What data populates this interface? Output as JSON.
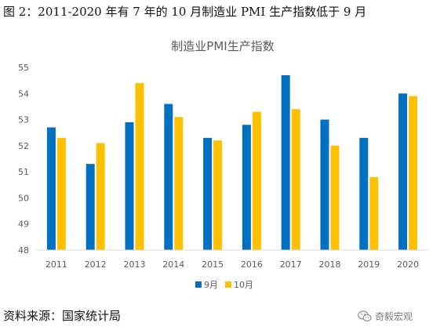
{
  "figure": {
    "caption": "图 2：2011-2020 年有 7 年的 10 月制造业 PMI 生产指数低于 9 月",
    "source": "资料来源：国家统计局",
    "watermark": "奇毅宏观"
  },
  "colors": {
    "series_sep": "#0070C0",
    "series_oct": "#FFC000",
    "axis_line": "#d9d9d9",
    "tick_text": "#595959",
    "title_text": "#595959"
  },
  "chart_data": {
    "type": "bar",
    "title": "制造业PMI生产指数",
    "xlabel": "",
    "ylabel": "",
    "ylim": [
      48,
      55
    ],
    "yticks": [
      48,
      49,
      50,
      51,
      52,
      53,
      54,
      55
    ],
    "grid": false,
    "legend_position": "bottom",
    "categories": [
      "2011",
      "2012",
      "2013",
      "2014",
      "2015",
      "2016",
      "2017",
      "2018",
      "2019",
      "2020"
    ],
    "series": [
      {
        "name": "9月",
        "values": [
          52.7,
          51.3,
          52.9,
          53.6,
          52.3,
          52.8,
          54.7,
          53.0,
          52.3,
          54.0
        ]
      },
      {
        "name": "10月",
        "values": [
          52.3,
          52.1,
          54.4,
          53.1,
          52.2,
          53.3,
          53.4,
          52.0,
          50.8,
          53.9
        ]
      }
    ]
  }
}
